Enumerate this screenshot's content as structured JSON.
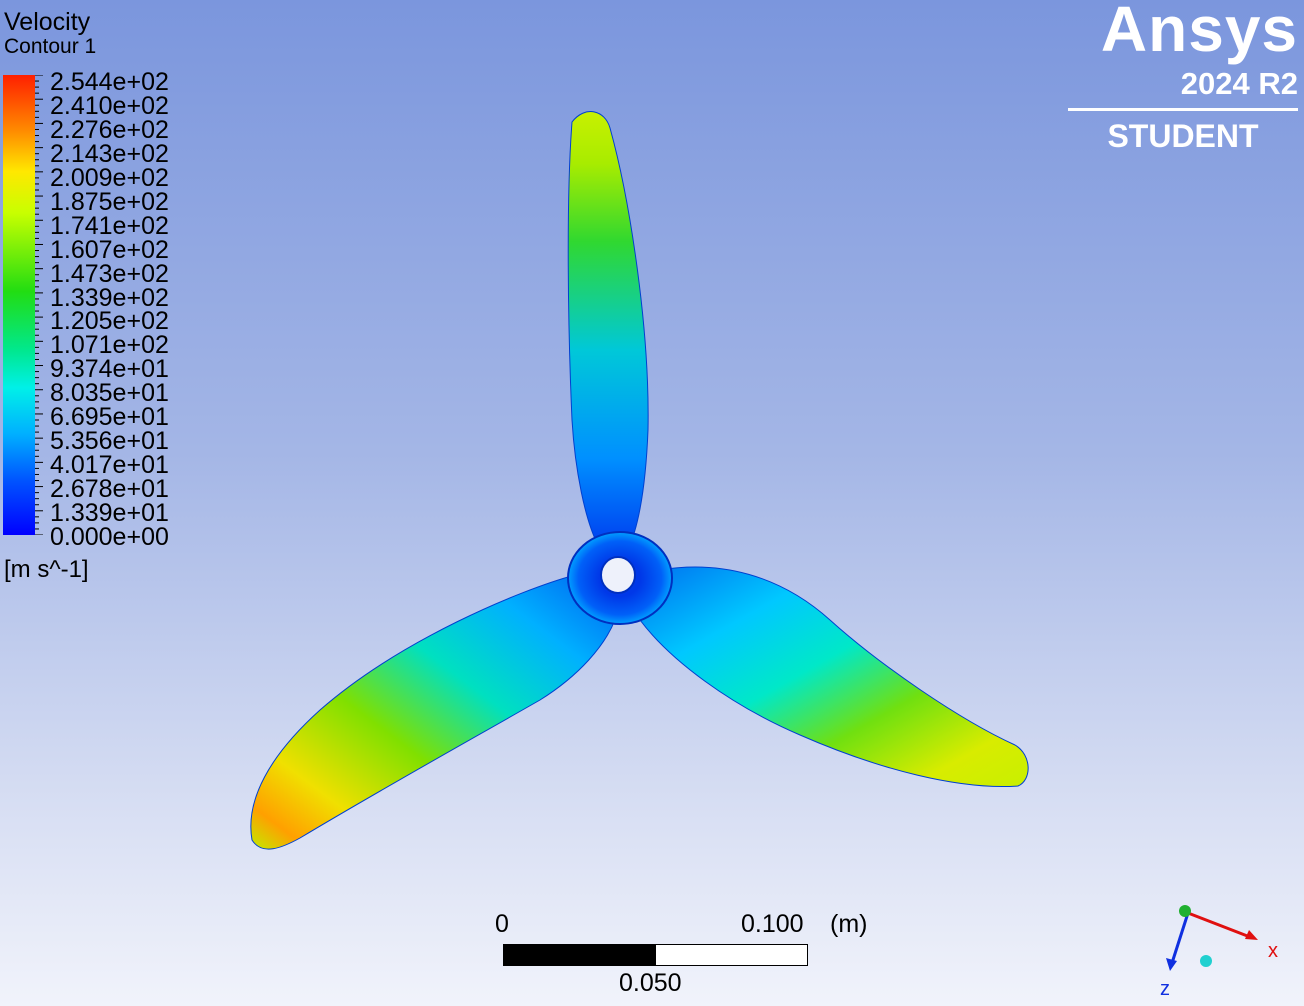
{
  "legend": {
    "variable": "Velocity",
    "contour_name": "Contour 1",
    "units": "[m s^-1]",
    "levels": [
      "2.544e+02",
      "2.410e+02",
      "2.276e+02",
      "2.143e+02",
      "2.009e+02",
      "1.875e+02",
      "1.741e+02",
      "1.607e+02",
      "1.473e+02",
      "1.339e+02",
      "1.205e+02",
      "1.071e+02",
      "9.374e+01",
      "8.035e+01",
      "6.695e+01",
      "5.356e+01",
      "4.017e+01",
      "2.678e+01",
      "1.339e+01",
      "0.000e+00"
    ],
    "max_color": "#ff1f00",
    "min_color": "#0000ff"
  },
  "logo": {
    "brand": "Ansys",
    "version": "2024 R2",
    "edition": "STUDENT"
  },
  "scale_bar": {
    "start": "0",
    "end": "0.100",
    "unit": "(m)",
    "mid": "0.050"
  },
  "triad": {
    "x_label": "x",
    "z_label": "z",
    "x_color": "#e01010",
    "z_color": "#1030e0"
  }
}
